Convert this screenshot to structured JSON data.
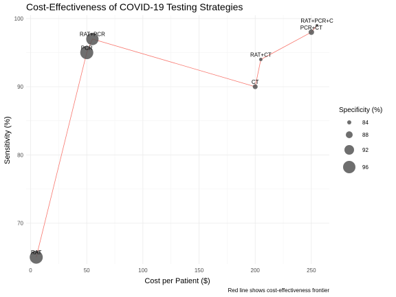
{
  "chart_data": {
    "type": "scatter",
    "title": "Cost-Effectiveness of COVID-19 Testing Strategies",
    "xlabel": "Cost per Patient ($)",
    "ylabel": "Sensitivity (%)",
    "xlim": [
      -4,
      266
    ],
    "ylim": [
      64,
      100.5
    ],
    "xticks": [
      0,
      50,
      100,
      150,
      200,
      250
    ],
    "yticks": [
      70,
      80,
      90,
      100
    ],
    "grid": true,
    "points": [
      {
        "label": "RAT",
        "x": 5,
        "y": 65,
        "specificity": 97
      },
      {
        "label": "PCR",
        "x": 50,
        "y": 95,
        "specificity": 97
      },
      {
        "label": "RAT+PCR",
        "x": 55,
        "y": 97,
        "specificity": 96
      },
      {
        "label": "CT",
        "x": 200,
        "y": 90,
        "specificity": 85
      },
      {
        "label": "RAT+CT",
        "x": 205,
        "y": 94,
        "specificity": 83
      },
      {
        "label": "PCR+CT",
        "x": 250,
        "y": 98,
        "specificity": 86
      },
      {
        "label": "RAT+PCR+C",
        "x": 255,
        "y": 99,
        "specificity": 82
      }
    ],
    "frontier": [
      {
        "x": 5,
        "y": 65
      },
      {
        "x": 50,
        "y": 95
      },
      {
        "x": 55,
        "y": 97
      },
      {
        "x": 200,
        "y": 90
      },
      {
        "x": 205,
        "y": 94
      },
      {
        "x": 250,
        "y": 98
      },
      {
        "x": 255,
        "y": 99
      }
    ],
    "frontier_color": "#f8766d",
    "point_color": "#555555",
    "legend": {
      "title": "Specificity (%)",
      "position": "right",
      "entries": [
        {
          "label": "84",
          "value": 84
        },
        {
          "label": "88",
          "value": 88
        },
        {
          "label": "92",
          "value": 92
        },
        {
          "label": "96",
          "value": 96
        }
      ]
    },
    "caption": "Red line shows cost-effectiveness frontier"
  }
}
